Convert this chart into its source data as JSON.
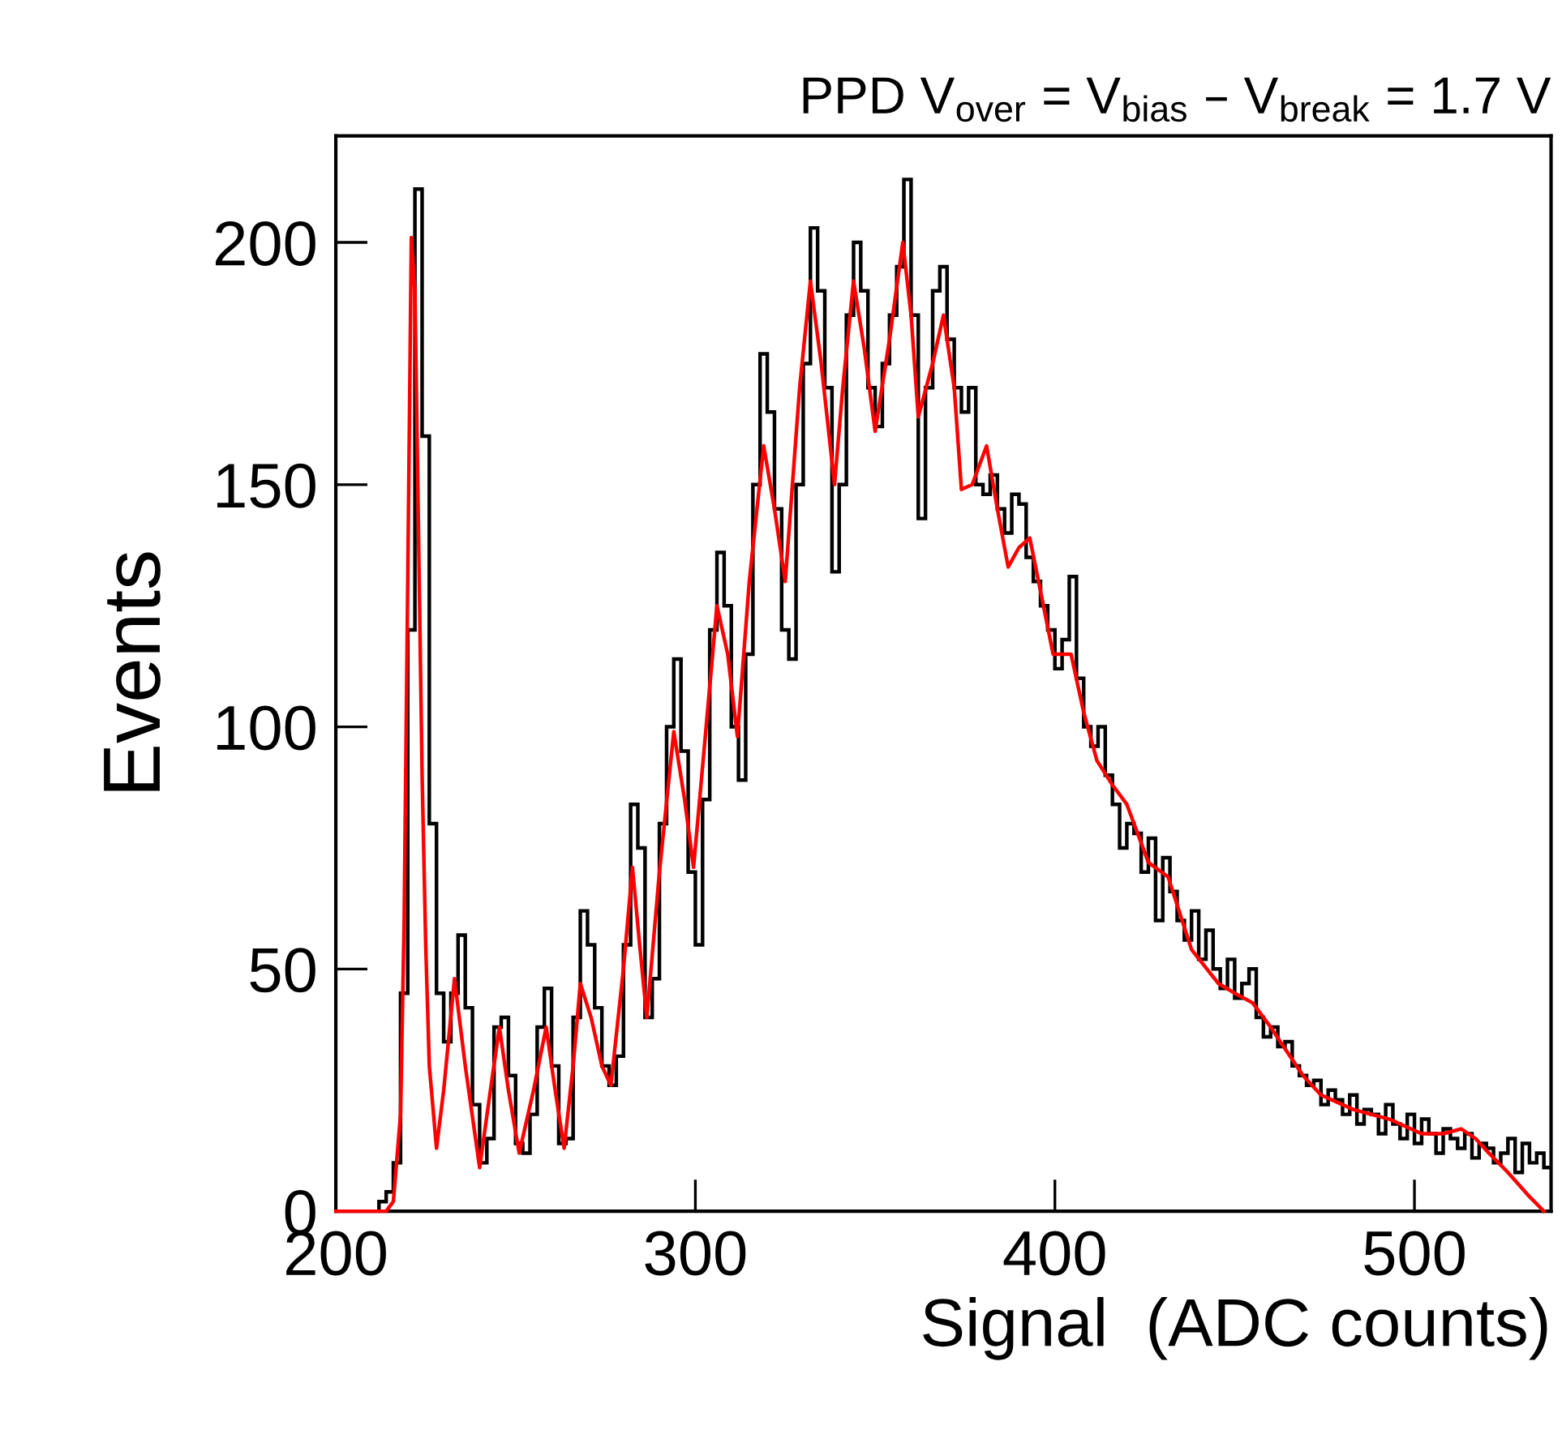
{
  "chart_data": {
    "type": "histogram",
    "title": "PPD V$_{over}$ = V$_{bias}$ – V$_{break}$ = 1.7 V",
    "xlabel": "Signal  (ADC counts)",
    "ylabel": "Events",
    "xlim": [
      200,
      538
    ],
    "ylim": [
      0,
      222
    ],
    "xticks": [
      200,
      300,
      400,
      500
    ],
    "yticks": [
      0,
      50,
      100,
      150,
      200
    ],
    "grid": false,
    "legend": false,
    "series": [
      {
        "color": "#000000",
        "bins": [
          210,
          212,
          214,
          216,
          218,
          220,
          222,
          224,
          226,
          228,
          230,
          232,
          234,
          236,
          238,
          240,
          242,
          244,
          246,
          248,
          250,
          252,
          254,
          256,
          258,
          260,
          262,
          264,
          266,
          268,
          270,
          272,
          274,
          276,
          278,
          280,
          282,
          284,
          286,
          288,
          290,
          292,
          294,
          296,
          298,
          300,
          302,
          304,
          306,
          308,
          310,
          312,
          314,
          316,
          318,
          320,
          322,
          324,
          326,
          328,
          330,
          332,
          334,
          336,
          338,
          340,
          342,
          344,
          346,
          348,
          350,
          352,
          354,
          356,
          358,
          360,
          362,
          364,
          366,
          368,
          370,
          372,
          374,
          376,
          378,
          380,
          382,
          384,
          386,
          388,
          390,
          392,
          394,
          396,
          398,
          400,
          402,
          404,
          406,
          408,
          410,
          412,
          414,
          416,
          418,
          420,
          422,
          424,
          426,
          428,
          430,
          432,
          434,
          436,
          438,
          440,
          442,
          444,
          446,
          448,
          450,
          452,
          454,
          456,
          458,
          460,
          462,
          464,
          466,
          468,
          470,
          472,
          474,
          476,
          478,
          480,
          482,
          484,
          486,
          488,
          490,
          492,
          494,
          496,
          498,
          500,
          502,
          504,
          506,
          508,
          510,
          512,
          514,
          516,
          518,
          520,
          522,
          524,
          526,
          528,
          530,
          532,
          534,
          536,
          538
        ],
        "values": [
          0,
          2,
          4,
          10,
          45,
          120,
          211,
          160,
          80,
          45,
          35,
          45,
          57,
          42,
          22,
          10,
          15,
          38,
          40,
          28,
          14,
          12,
          20,
          38,
          46,
          30,
          14,
          15,
          40,
          62,
          55,
          42,
          30,
          26,
          32,
          55,
          84,
          75,
          40,
          48,
          80,
          100,
          114,
          95,
          70,
          55,
          85,
          120,
          136,
          125,
          100,
          89,
          115,
          150,
          177,
          165,
          145,
          120,
          114,
          150,
          175,
          203,
          190,
          170,
          132,
          150,
          185,
          200,
          190,
          170,
          162,
          175,
          185,
          195,
          213,
          185,
          143,
          170,
          190,
          195,
          180,
          170,
          165,
          170,
          150,
          148,
          152,
          145,
          140,
          148,
          146,
          135,
          130,
          125,
          120,
          112,
          118,
          131,
          110,
          100,
          96,
          100,
          90,
          84,
          75,
          80,
          78,
          70,
          77,
          60,
          73,
          66,
          60,
          56,
          62,
          52,
          58,
          50,
          46,
          52,
          44,
          47,
          50,
          40,
          36,
          38,
          34,
          35,
          30,
          28,
          26,
          27,
          22,
          25,
          23,
          20,
          24,
          18,
          21,
          20,
          16,
          22,
          18,
          15,
          20,
          14,
          19,
          16,
          12,
          17,
          15,
          13,
          16,
          11,
          14,
          13,
          10,
          12,
          15,
          8,
          14,
          10,
          12,
          9
        ]
      },
      {
        "type": "line",
        "color": "#ff0000",
        "x": [
          200,
          214,
          216,
          218,
          219,
          220,
          221,
          222,
          223,
          224,
          225,
          226,
          228,
          230,
          233,
          236,
          240,
          243,
          245.5,
          248,
          251,
          255,
          258.5,
          261,
          263.5,
          266,
          268,
          271,
          274,
          276.5,
          280,
          282.5,
          284.5,
          286.5,
          290,
          294,
          297,
          299.5,
          303,
          306,
          309,
          311.7,
          315,
          319,
          322,
          325,
          329,
          332,
          335,
          338.7,
          341,
          344,
          347,
          350,
          354,
          357.7,
          360,
          362,
          366,
          369,
          372,
          374,
          377,
          381,
          384,
          387,
          390,
          393,
          396,
          399.5,
          404.5,
          408,
          411.7,
          416,
          420,
          426,
          431.5,
          438,
          445.5,
          450,
          455,
          460,
          464.5,
          469,
          474,
          483,
          493,
          502,
          508,
          513,
          517,
          520.7,
          526,
          532,
          536
        ],
        "values": [
          0,
          0,
          2,
          20,
          60,
          130,
          201,
          190,
          140,
          90,
          55,
          30,
          13,
          25,
          48,
          30,
          9,
          25,
          38,
          25,
          12,
          25,
          38,
          25,
          13,
          30,
          47,
          40,
          30,
          26,
          50,
          71,
          55,
          40,
          70,
          99,
          85,
          71,
          100,
          125,
          115,
          98,
          130,
          158,
          145,
          130,
          170,
          192,
          175,
          150,
          170,
          192,
          178,
          161,
          180,
          200,
          185,
          164,
          175,
          185,
          170,
          149,
          150,
          158,
          145,
          133,
          137,
          139,
          128,
          115,
          115,
          103,
          93,
          88,
          84,
          72,
          69,
          54,
          47,
          45,
          43,
          38,
          33,
          28,
          24,
          21,
          19,
          16,
          16,
          17,
          15,
          12,
          8,
          3,
          0
        ]
      }
    ]
  }
}
